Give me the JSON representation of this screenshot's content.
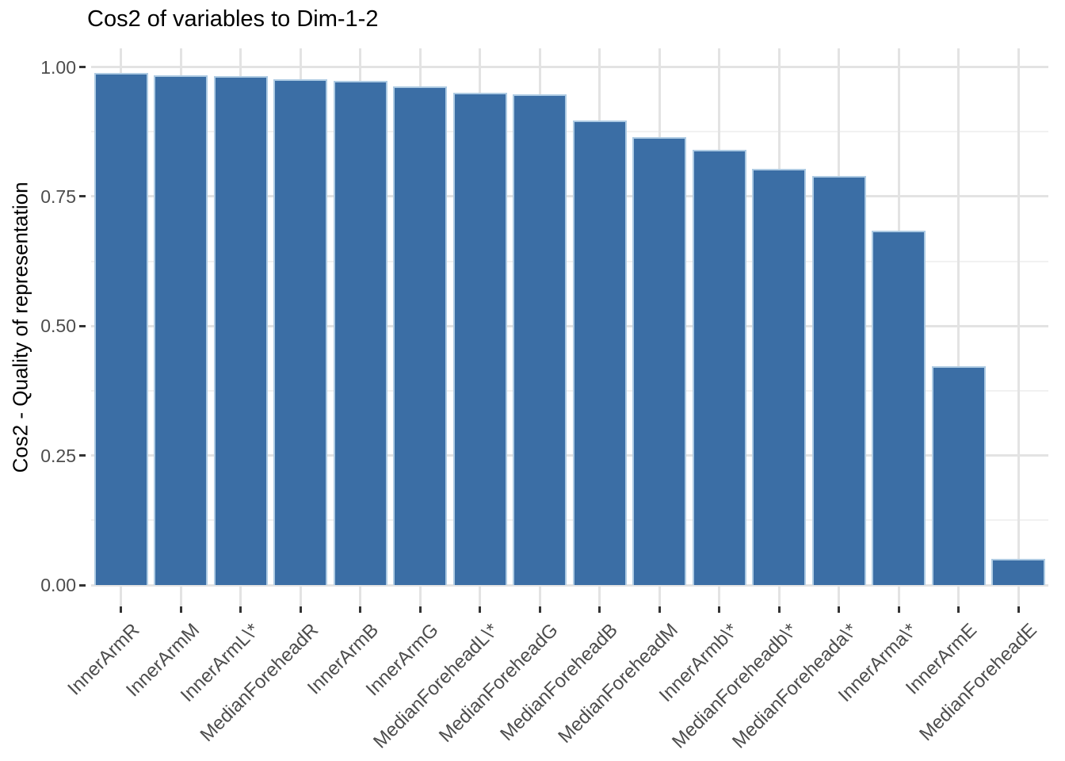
{
  "title": "Cos2 of variables to Dim-1-2",
  "chart_data": {
    "type": "bar",
    "title": "Cos2 of variables to Dim-1-2",
    "xlabel": "",
    "ylabel": "Cos2 - Quality of representation",
    "categories": [
      "InnerArmR",
      "InnerArmM",
      "InnerArmL\\*",
      "MedianForeheadR",
      "InnerArmB",
      "InnerArmG",
      "MedianForeheadL\\*",
      "MedianForeheadG",
      "MedianForeheadB",
      "MedianForeheadM",
      "InnerArmb\\*",
      "MedianForeheadb\\*",
      "MedianForeheada\\*",
      "InnerArma\\*",
      "InnerArmE",
      "MedianForeheadE"
    ],
    "values": [
      0.988,
      0.984,
      0.982,
      0.977,
      0.973,
      0.962,
      0.951,
      0.947,
      0.896,
      0.865,
      0.84,
      0.804,
      0.79,
      0.684,
      0.423,
      0.05
    ],
    "ylim": [
      0,
      1
    ],
    "yticks": [
      0.0,
      0.25,
      0.5,
      0.75,
      1.0
    ],
    "ytick_labels": [
      "0.00",
      "0.25",
      "0.50",
      "0.75",
      "1.00"
    ],
    "yticks_minor": [
      0.125,
      0.375,
      0.625,
      0.875
    ],
    "grid": true,
    "legend": "none",
    "bar_fill_color": "#3b6ea5",
    "bar_border_color": "#aecbe3",
    "grid_major_color": "#e3e3e3",
    "grid_minor_color": "#f1f1f1",
    "axis_text_color": "#4d4d4d",
    "tick_mark_color": "#333333",
    "title_color": "#000000",
    "background_color": "#ffffff"
  }
}
